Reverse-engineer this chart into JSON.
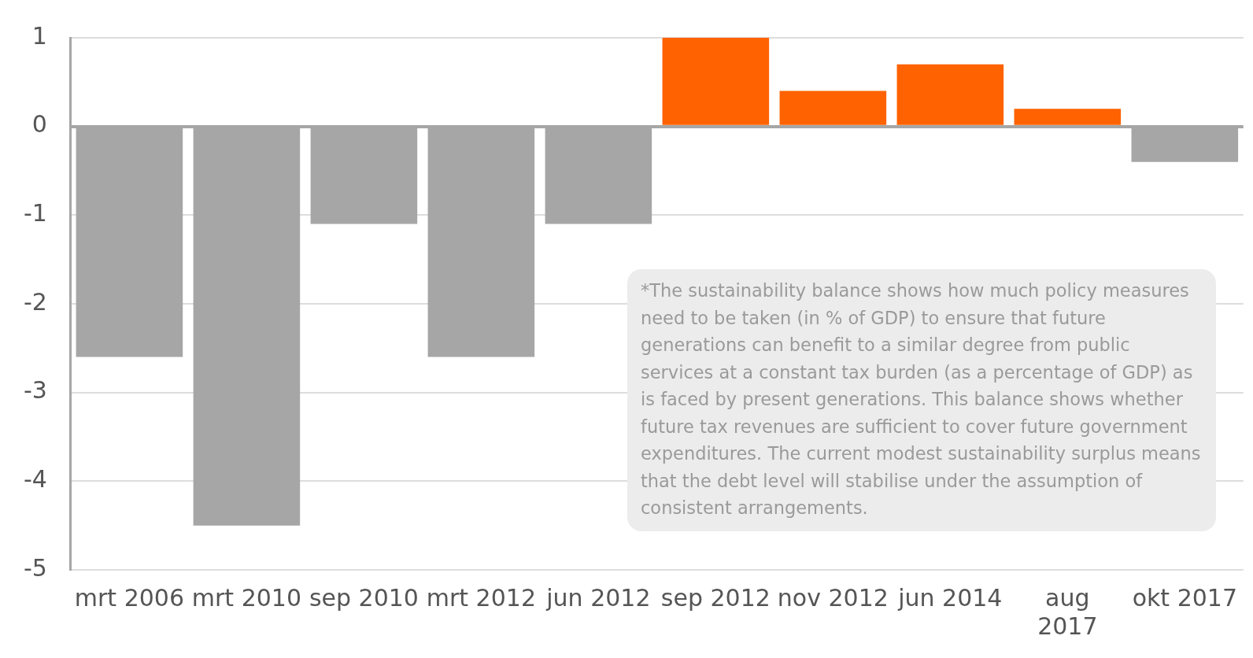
{
  "chart_data": {
    "type": "bar",
    "categories": [
      "mrt 2006",
      "mrt 2010",
      "sep 2010",
      "mrt 2012",
      "jun 2012",
      "sep 2012",
      "nov 2012",
      "jun 2014",
      "aug 2017",
      "okt 2017"
    ],
    "values": [
      -2.6,
      -4.5,
      -1.1,
      -2.6,
      -1.1,
      1.0,
      0.4,
      0.7,
      0.2,
      -0.4
    ],
    "colors": [
      "#a6a6a6",
      "#a6a6a6",
      "#a6a6a6",
      "#a6a6a6",
      "#a6a6a6",
      "#ff6200",
      "#ff6200",
      "#ff6200",
      "#ff6200",
      "#a6a6a6"
    ],
    "ylim": [
      -5,
      1
    ],
    "yticks": [
      -5,
      -4,
      -3,
      -2,
      -1,
      0,
      1
    ],
    "grid": "y",
    "legend": false,
    "annotations": [
      "*The sustainability balance shows how much policy measures need to be taken (in % of GDP) to ensure that future generations can benefit to a similar degree from public services at a constant tax burden (as a percentage of GDP) as is faced by present generations. This balance shows whether future tax revenues are sufficient to cover future government expenditures. The current modest sustainability surplus means that the debt level will stabilise under the assumption of consistent arrangements."
    ]
  }
}
